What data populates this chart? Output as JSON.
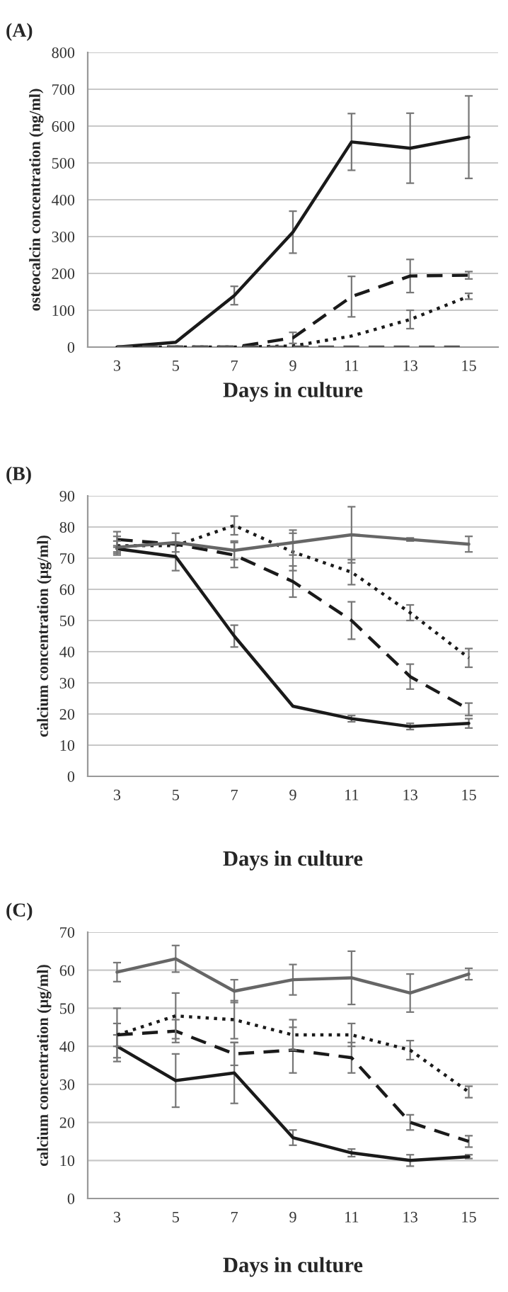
{
  "chart_data": [
    {
      "type": "line",
      "title": "(A)",
      "xlabel": "Days in culture",
      "ylabel": "osteocalcin concentration (ng/ml)",
      "categories": [
        "3",
        "5",
        "7",
        "9",
        "11",
        "13",
        "15"
      ],
      "ylim": [
        0,
        800
      ],
      "yticks": [
        0,
        100,
        200,
        300,
        400,
        500,
        600,
        700,
        800
      ],
      "grid": "y",
      "series": [
        {
          "color": "#1a1a1a",
          "line_style": "solid",
          "values": [
            0,
            13,
            140,
            312,
            557,
            540,
            570
          ],
          "errors": [
            null,
            null,
            25,
            57,
            77,
            95,
            112
          ]
        },
        {
          "color": "#1a1a1a",
          "line_style": "dashed",
          "values": [
            0,
            0,
            0,
            25,
            137,
            193,
            195
          ],
          "errors": [
            null,
            null,
            null,
            15,
            55,
            45,
            10
          ]
        },
        {
          "color": "#1a1a1a",
          "line_style": "dotted",
          "values": [
            0,
            0,
            0,
            3,
            30,
            75,
            138
          ],
          "errors": [
            null,
            null,
            null,
            null,
            null,
            25,
            8
          ]
        },
        {
          "color": "#555555",
          "line_style": "dashed",
          "values": [
            0,
            0,
            0,
            0,
            0,
            0,
            0
          ]
        }
      ]
    },
    {
      "type": "line",
      "title": "(B)",
      "xlabel": "Days in culture",
      "ylabel": "calcium concentration (µg/ml)",
      "categories": [
        "3",
        "5",
        "7",
        "9",
        "11",
        "13",
        "15"
      ],
      "ylim": [
        0,
        90
      ],
      "yticks": [
        0,
        10,
        20,
        30,
        40,
        50,
        60,
        70,
        80,
        90
      ],
      "grid": "y",
      "series": [
        {
          "color": "#1a1a1a",
          "line_style": "solid",
          "values": [
            73,
            70.5,
            45,
            22.5,
            18.5,
            16,
            17
          ],
          "errors": [
            1,
            4.5,
            3.5,
            null,
            1,
            1,
            1.5
          ]
        },
        {
          "color": "#1a1a1a",
          "line_style": "dashed",
          "values": [
            76,
            74.5,
            71,
            62.5,
            50,
            32,
            21.5
          ],
          "errors": [
            2.5,
            null,
            4,
            5,
            6,
            4,
            2
          ]
        },
        {
          "color": "#1a1a1a",
          "line_style": "dotted",
          "values": [
            74,
            74,
            80.5,
            72,
            65.5,
            52.5,
            38
          ],
          "errors": [
            3,
            null,
            3,
            6,
            4,
            2.5,
            3
          ]
        },
        {
          "color": "#666666",
          "line_style": "solid",
          "values": [
            73.5,
            75,
            72.5,
            75,
            77.5,
            76,
            74.5
          ],
          "errors": [
            2,
            3,
            3,
            4,
            9,
            0.5,
            2.5
          ]
        }
      ]
    },
    {
      "type": "line",
      "title": "(C)",
      "xlabel": "Days in culture",
      "ylabel": "calcium concentration (µg/ml)",
      "categories": [
        "3",
        "5",
        "7",
        "9",
        "11",
        "13",
        "15"
      ],
      "ylim": [
        0,
        70
      ],
      "yticks": [
        0,
        10,
        20,
        30,
        40,
        50,
        60,
        70
      ],
      "grid": "y",
      "series": [
        {
          "color": "#1a1a1a",
          "line_style": "solid",
          "values": [
            40,
            31,
            33,
            16,
            12,
            10,
            11
          ],
          "errors": [
            3,
            7,
            8,
            2,
            1,
            1.5,
            0.5
          ]
        },
        {
          "color": "#1a1a1a",
          "line_style": "dashed",
          "values": [
            43,
            44,
            38,
            39,
            37,
            20,
            15
          ],
          "errors": [
            7,
            3,
            3,
            6,
            4,
            2,
            1.5
          ]
        },
        {
          "color": "#1a1a1a",
          "line_style": "dotted",
          "values": [
            43,
            48,
            47,
            43,
            43,
            39,
            28
          ],
          "errors": [
            3,
            6,
            5,
            4,
            3,
            2.5,
            1.5
          ]
        },
        {
          "color": "#666666",
          "line_style": "solid",
          "values": [
            59.5,
            63,
            54.5,
            57.5,
            58,
            54,
            59
          ],
          "errors": [
            2.5,
            3.5,
            3,
            4,
            7,
            5,
            1.5
          ]
        }
      ]
    }
  ]
}
